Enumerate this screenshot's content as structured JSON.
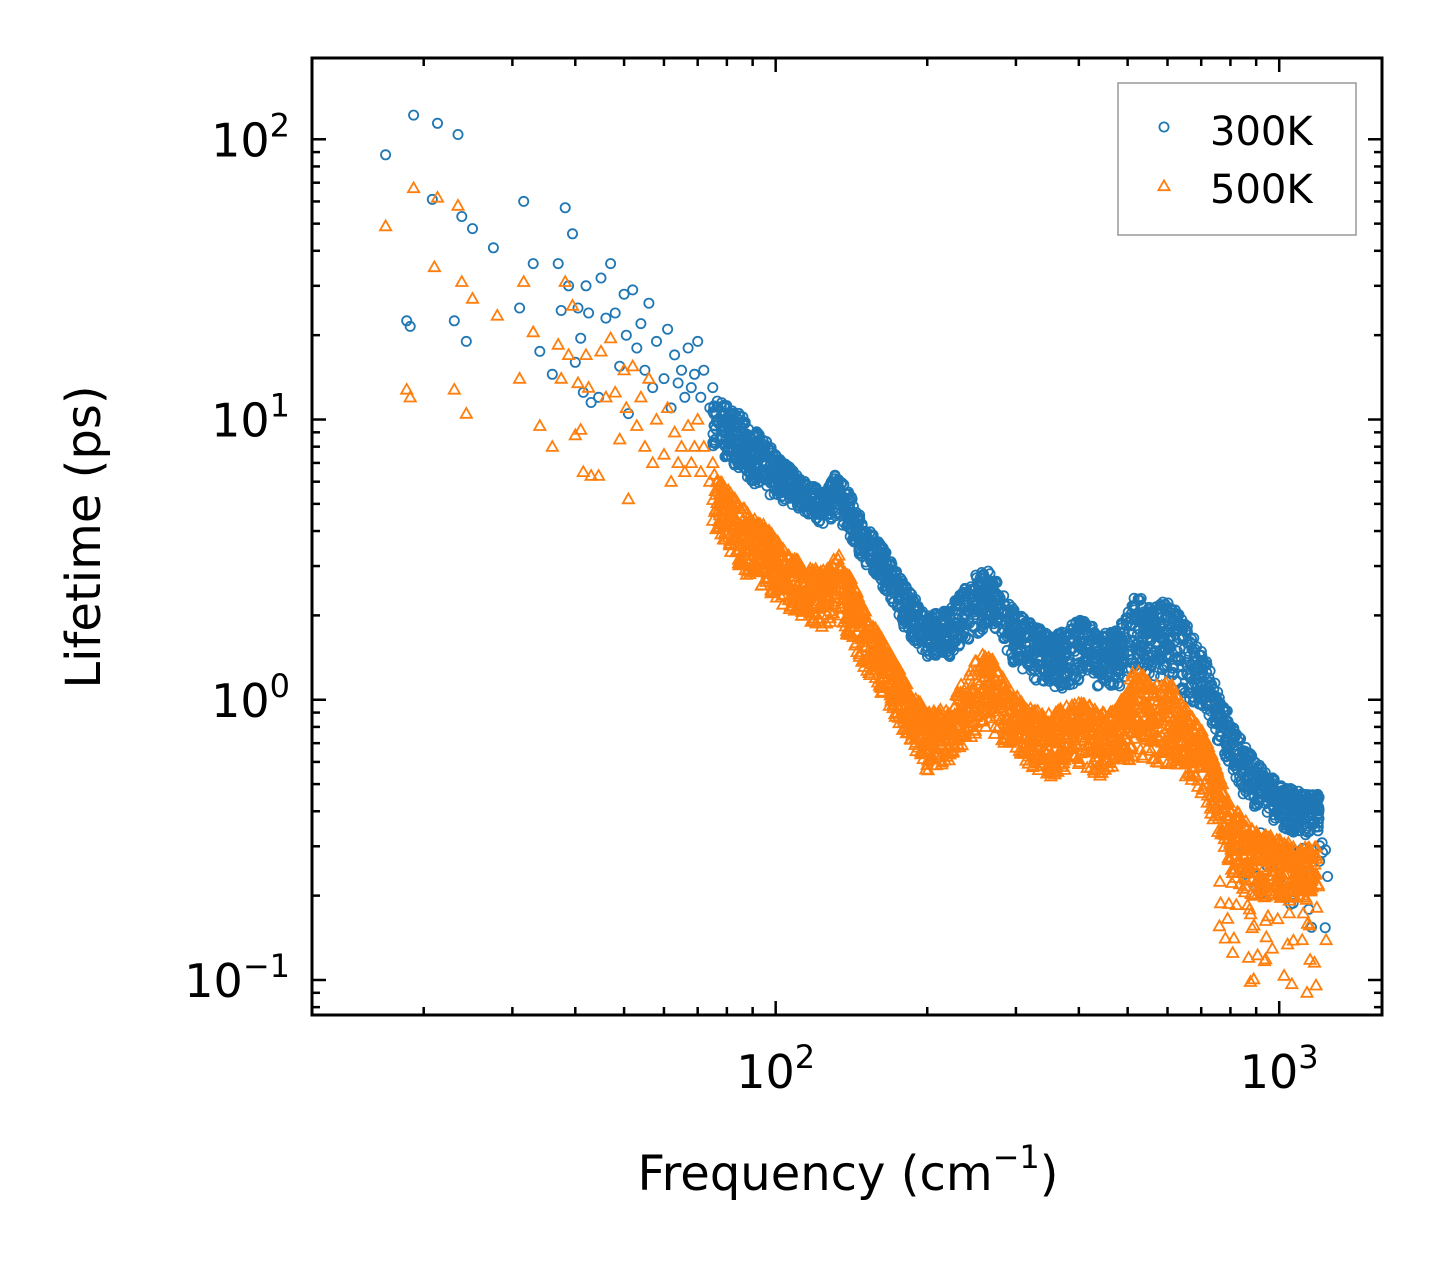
{
  "chart_data": {
    "type": "scatter",
    "title": "",
    "xlabel": "Frequency (cm",
    "xlabel_sup": "−1",
    "xlabel_suffix": ")",
    "ylabel": "Lifetime (ps)",
    "xscale": "log",
    "yscale": "log",
    "xlim": [
      12,
      1600
    ],
    "ylim": [
      0.075,
      195
    ],
    "x_ticks": [
      {
        "value": 100,
        "base": "10",
        "exp": "2"
      },
      {
        "value": 1000,
        "base": "10",
        "exp": "3"
      }
    ],
    "y_ticks": [
      {
        "value": 0.1,
        "base": "10",
        "exp": "−1"
      },
      {
        "value": 1,
        "base": "10",
        "exp": "0"
      },
      {
        "value": 10,
        "base": "10",
        "exp": "1"
      },
      {
        "value": 100,
        "base": "10",
        "exp": "2"
      }
    ],
    "legend_position": "top-right",
    "series": [
      {
        "name": "300K",
        "marker": "circle",
        "color": "#1f77b4",
        "points": [
          [
            16.8,
            88
          ],
          [
            18.5,
            22.5
          ],
          [
            18.8,
            21.5
          ],
          [
            19.1,
            122
          ],
          [
            20.8,
            61
          ],
          [
            21.3,
            114
          ],
          [
            23.0,
            22.5
          ],
          [
            23.4,
            104
          ],
          [
            23.8,
            53
          ],
          [
            24.3,
            19
          ],
          [
            25.0,
            48
          ],
          [
            27.5,
            41
          ],
          [
            31.0,
            25
          ],
          [
            31.6,
            60
          ],
          [
            33.0,
            36
          ],
          [
            34.0,
            17.5
          ],
          [
            36.0,
            14.5
          ],
          [
            37.0,
            36
          ],
          [
            37.5,
            24.5
          ],
          [
            38.2,
            57
          ],
          [
            38.8,
            30
          ],
          [
            39.5,
            46
          ],
          [
            40.0,
            16
          ],
          [
            40.5,
            25
          ],
          [
            41.0,
            19.5
          ],
          [
            41.5,
            12.5
          ],
          [
            42.0,
            30
          ],
          [
            42.5,
            24
          ],
          [
            43.0,
            11.5
          ],
          [
            44.5,
            12
          ],
          [
            45.0,
            32
          ],
          [
            46.0,
            23
          ],
          [
            47.0,
            36
          ],
          [
            48.0,
            24
          ],
          [
            49.0,
            15.5
          ],
          [
            50.0,
            28
          ],
          [
            50.5,
            20
          ],
          [
            51.0,
            10.5
          ],
          [
            52.0,
            29
          ],
          [
            53.0,
            18
          ],
          [
            54.0,
            22
          ],
          [
            55.0,
            15
          ],
          [
            56.0,
            26
          ],
          [
            57.0,
            13
          ],
          [
            58.0,
            19
          ],
          [
            60.0,
            14
          ],
          [
            61.0,
            21
          ],
          [
            62.0,
            11
          ],
          [
            63.0,
            17
          ],
          [
            64.0,
            13.5
          ],
          [
            65.0,
            15
          ],
          [
            66.0,
            12
          ],
          [
            67.0,
            18
          ],
          [
            68.0,
            13
          ],
          [
            69.0,
            14.5
          ],
          [
            70.0,
            19
          ],
          [
            71.0,
            12
          ],
          [
            72.0,
            15
          ],
          [
            74.0,
            11
          ],
          [
            75.0,
            13
          ]
        ],
        "envelope": [
          [
            75,
            12.0,
            8.0
          ],
          [
            85,
            10.5,
            6.5
          ],
          [
            95,
            8.5,
            5.5
          ],
          [
            105,
            7.0,
            5.0
          ],
          [
            115,
            6.0,
            4.5
          ],
          [
            125,
            5.5,
            4.2
          ],
          [
            132,
            6.5,
            4.5
          ],
          [
            140,
            5.5,
            3.8
          ],
          [
            150,
            4.3,
            3.0
          ],
          [
            165,
            3.4,
            2.4
          ],
          [
            180,
            2.6,
            1.8
          ],
          [
            200,
            2.0,
            1.4
          ],
          [
            220,
            2.1,
            1.4
          ],
          [
            250,
            2.8,
            1.7
          ],
          [
            265,
            3.0,
            1.8
          ],
          [
            290,
            2.2,
            1.4
          ],
          [
            320,
            1.9,
            1.2
          ],
          [
            350,
            1.7,
            1.1
          ],
          [
            380,
            1.8,
            1.1
          ],
          [
            410,
            2.0,
            1.2
          ],
          [
            440,
            1.7,
            1.1
          ],
          [
            480,
            1.8,
            1.1
          ],
          [
            520,
            2.4,
            1.3
          ],
          [
            560,
            2.1,
            1.2
          ],
          [
            600,
            2.3,
            1.2
          ],
          [
            650,
            1.9,
            1.0
          ],
          [
            700,
            1.5,
            0.9
          ],
          [
            760,
            1.1,
            0.7
          ],
          [
            800,
            0.85,
            0.55
          ],
          [
            850,
            0.7,
            0.45
          ],
          [
            900,
            0.6,
            0.4
          ],
          [
            1000,
            0.5,
            0.35
          ],
          [
            1100,
            0.47,
            0.33
          ],
          [
            1200,
            0.46,
            0.33
          ]
        ],
        "dense_seed": 11
      },
      {
        "name": "500K",
        "marker": "triangle",
        "color": "#ff7f0e",
        "points": [
          [
            16.8,
            49
          ],
          [
            18.5,
            12.8
          ],
          [
            18.8,
            12
          ],
          [
            19.1,
            67
          ],
          [
            21.3,
            62
          ],
          [
            21.0,
            35
          ],
          [
            23.0,
            12.8
          ],
          [
            23.4,
            58
          ],
          [
            23.8,
            31
          ],
          [
            24.3,
            10.5
          ],
          [
            25.0,
            27
          ],
          [
            28.0,
            23.5
          ],
          [
            31.0,
            14
          ],
          [
            31.6,
            31
          ],
          [
            33.0,
            20.5
          ],
          [
            34.0,
            9.5
          ],
          [
            36.0,
            8
          ],
          [
            37.0,
            18.5
          ],
          [
            37.5,
            14
          ],
          [
            38.2,
            31
          ],
          [
            38.8,
            17
          ],
          [
            39.5,
            25.5
          ],
          [
            40.0,
            8.8
          ],
          [
            40.5,
            13.5
          ],
          [
            41.0,
            9.2
          ],
          [
            41.5,
            6.5
          ],
          [
            42.0,
            17
          ],
          [
            42.5,
            13
          ],
          [
            43.0,
            6.3
          ],
          [
            44.5,
            6.3
          ],
          [
            45.0,
            17.5
          ],
          [
            46.0,
            12
          ],
          [
            47.0,
            19.5
          ],
          [
            48.0,
            12.5
          ],
          [
            49.0,
            8.5
          ],
          [
            50.0,
            15
          ],
          [
            50.5,
            11
          ],
          [
            51.0,
            5.2
          ],
          [
            52.0,
            15.5
          ],
          [
            53.0,
            9.5
          ],
          [
            54.0,
            12
          ],
          [
            55.0,
            8
          ],
          [
            56.0,
            14
          ],
          [
            57.0,
            7
          ],
          [
            58.0,
            10
          ],
          [
            60.0,
            7.5
          ],
          [
            61.0,
            11
          ],
          [
            62.0,
            6
          ],
          [
            63.0,
            9
          ],
          [
            64.0,
            7
          ],
          [
            65.0,
            8
          ],
          [
            66.0,
            6.5
          ],
          [
            67.0,
            9.5
          ],
          [
            68.0,
            7
          ],
          [
            69.0,
            8
          ],
          [
            70.0,
            10
          ],
          [
            71.0,
            6.5
          ],
          [
            72.0,
            8
          ],
          [
            74.0,
            6
          ],
          [
            75.0,
            7
          ]
        ],
        "envelope": [
          [
            75,
            6.5,
            4.2
          ],
          [
            85,
            5.0,
            2.9
          ],
          [
            95,
            4.2,
            2.5
          ],
          [
            105,
            3.4,
            2.1
          ],
          [
            115,
            3.0,
            1.9
          ],
          [
            125,
            2.9,
            1.8
          ],
          [
            132,
            3.4,
            2.0
          ],
          [
            140,
            2.8,
            1.6
          ],
          [
            150,
            2.1,
            1.3
          ],
          [
            165,
            1.6,
            1.0
          ],
          [
            180,
            1.2,
            0.75
          ],
          [
            200,
            0.9,
            0.55
          ],
          [
            220,
            0.95,
            0.6
          ],
          [
            250,
            1.4,
            0.75
          ],
          [
            265,
            1.5,
            0.8
          ],
          [
            290,
            1.1,
            0.65
          ],
          [
            320,
            0.95,
            0.58
          ],
          [
            350,
            0.9,
            0.52
          ],
          [
            380,
            0.95,
            0.55
          ],
          [
            410,
            1.0,
            0.58
          ],
          [
            440,
            0.9,
            0.52
          ],
          [
            480,
            0.95,
            0.55
          ],
          [
            520,
            1.35,
            0.62
          ],
          [
            560,
            1.1,
            0.6
          ],
          [
            600,
            1.2,
            0.58
          ],
          [
            650,
            0.95,
            0.52
          ],
          [
            700,
            0.8,
            0.45
          ],
          [
            760,
            0.55,
            0.32
          ],
          [
            800,
            0.42,
            0.22
          ],
          [
            850,
            0.38,
            0.2
          ],
          [
            900,
            0.34,
            0.2
          ],
          [
            1000,
            0.32,
            0.19
          ],
          [
            1100,
            0.3,
            0.19
          ],
          [
            1200,
            0.3,
            0.2
          ]
        ],
        "dense_seed": 29
      }
    ]
  }
}
